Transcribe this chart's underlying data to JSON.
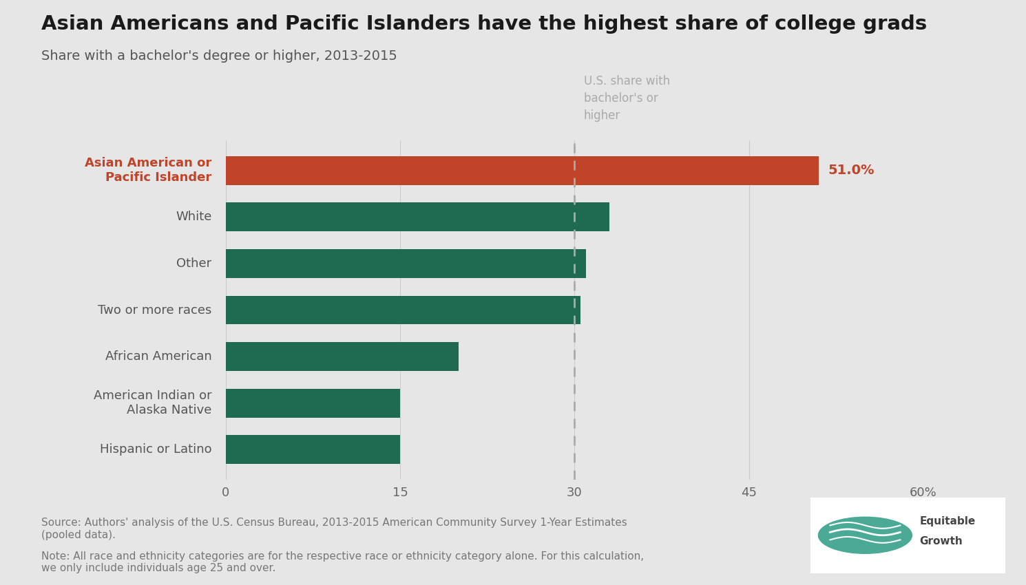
{
  "title": "Asian Americans and Pacific Islanders have the highest share of college grads",
  "subtitle": "Share with a bachelor's degree or higher, 2013-2015",
  "categories": [
    "Hispanic or Latino",
    "American Indian or\nAlaska Native",
    "African American",
    "Two or more races",
    "Other",
    "White",
    "Asian American or\nPacific Islander"
  ],
  "values": [
    15.0,
    15.0,
    20.0,
    30.5,
    31.0,
    33.0,
    51.0
  ],
  "bar_colors": [
    "#1e6b52",
    "#1e6b52",
    "#1e6b52",
    "#1e6b52",
    "#1e6b52",
    "#1e6b52",
    "#c0442a"
  ],
  "highlight_index": 6,
  "highlight_color": "#c0442a",
  "highlight_text_color": "#c0442a",
  "normal_color": "#1e6b52",
  "reference_line_x": 30,
  "reference_line_label": "U.S. share with\nbachelor's or\nhigher",
  "reference_line_color": "#aaaaaa",
  "value_label": "51.0%",
  "xlim": [
    0,
    60
  ],
  "xticks": [
    0,
    15,
    30,
    45,
    60
  ],
  "xticklabels": [
    "0",
    "15",
    "30",
    "45",
    "60%"
  ],
  "background_color": "#e6e6e6",
  "bar_height": 0.62,
  "source_text": "Source: Authors' analysis of the U.S. Census Bureau, 2013-2015 American Community Survey 1-Year Estimates\n(pooled data).",
  "note_text": "Note: All race and ethnicity categories are for the respective race or ethnicity category alone. For this calculation,\nwe only include individuals age 25 and over.",
  "title_fontsize": 21,
  "subtitle_fontsize": 14,
  "label_fontsize": 13,
  "tick_fontsize": 13,
  "annotation_fontsize": 12,
  "footer_fontsize": 11
}
